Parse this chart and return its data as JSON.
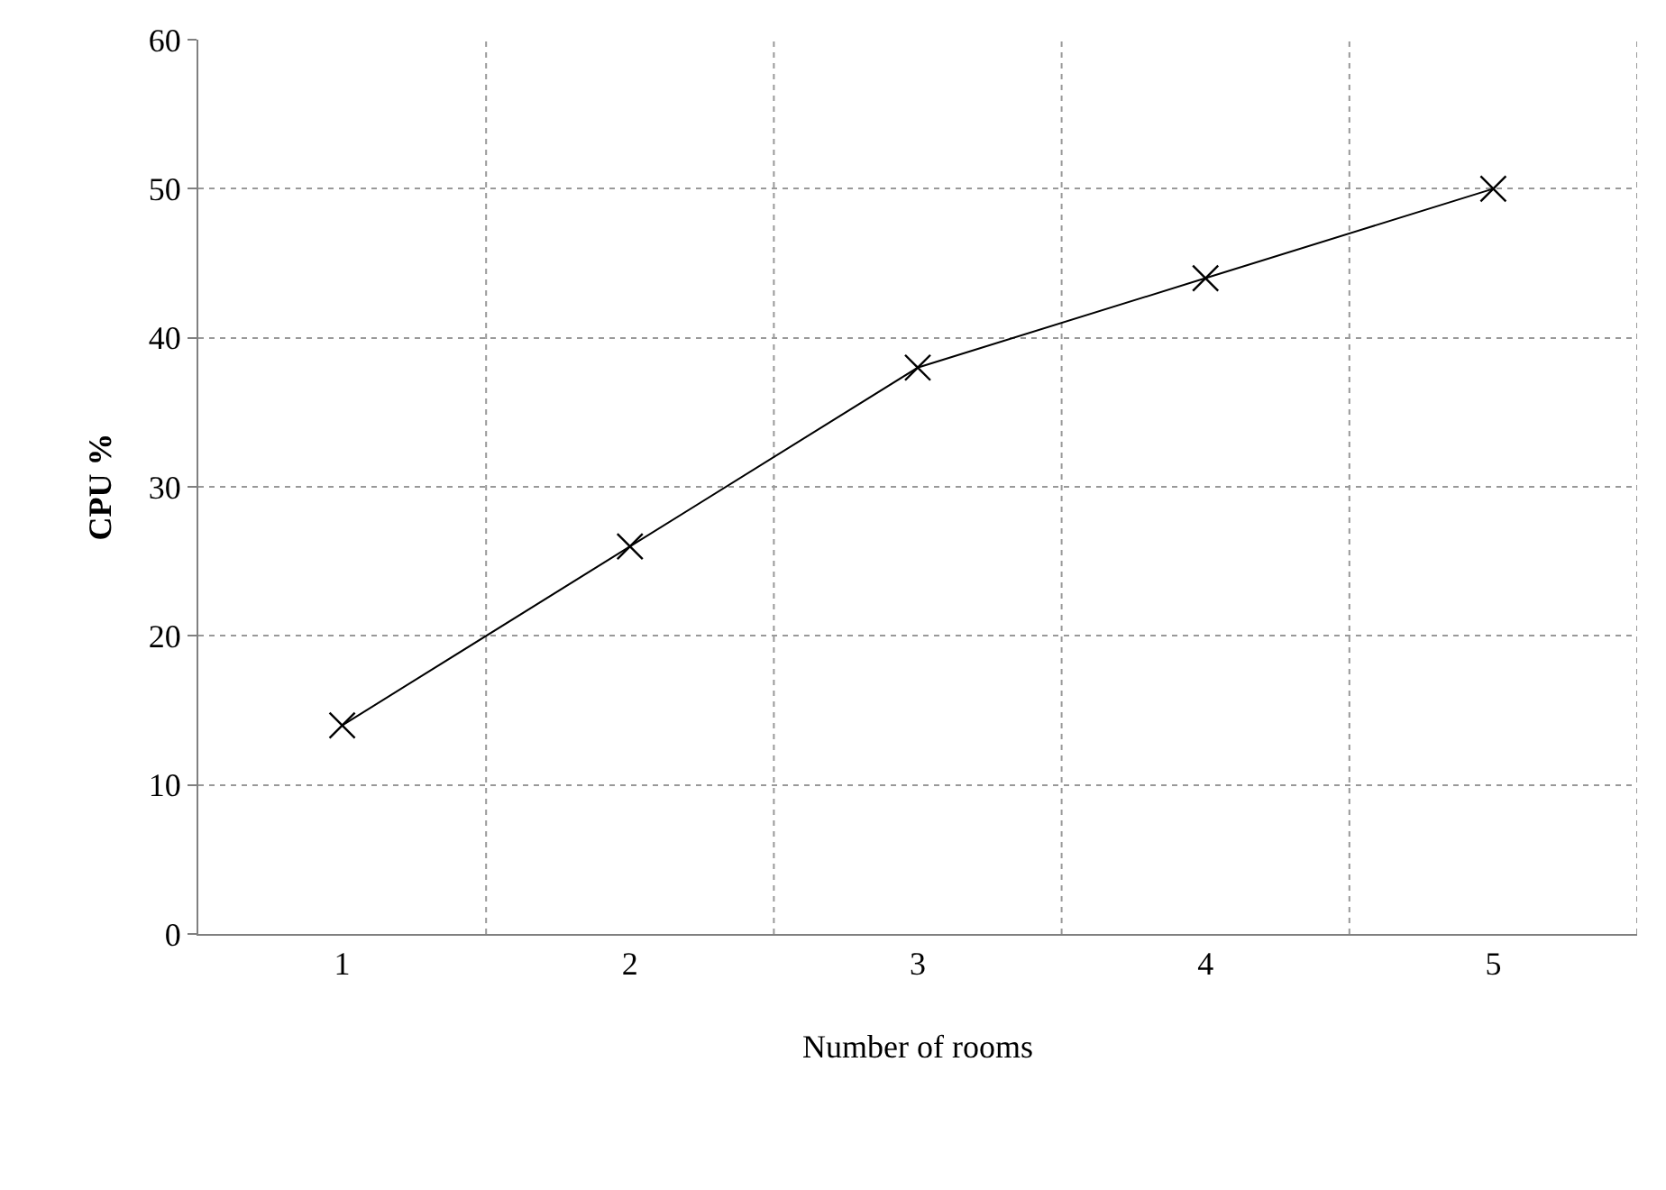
{
  "chart_data": {
    "type": "line",
    "xlabel": "Number of rooms",
    "ylabel": "CPU %",
    "categories": [
      "1",
      "2",
      "3",
      "4",
      "5"
    ],
    "series": [
      {
        "color": "#000000",
        "values": [
          14,
          26,
          38,
          44,
          50
        ]
      }
    ],
    "ylim": [
      0,
      60
    ],
    "yticks": [
      0,
      10,
      20,
      30,
      40,
      50,
      60
    ],
    "grid": true,
    "marker": "cross",
    "line_style": "solid"
  }
}
